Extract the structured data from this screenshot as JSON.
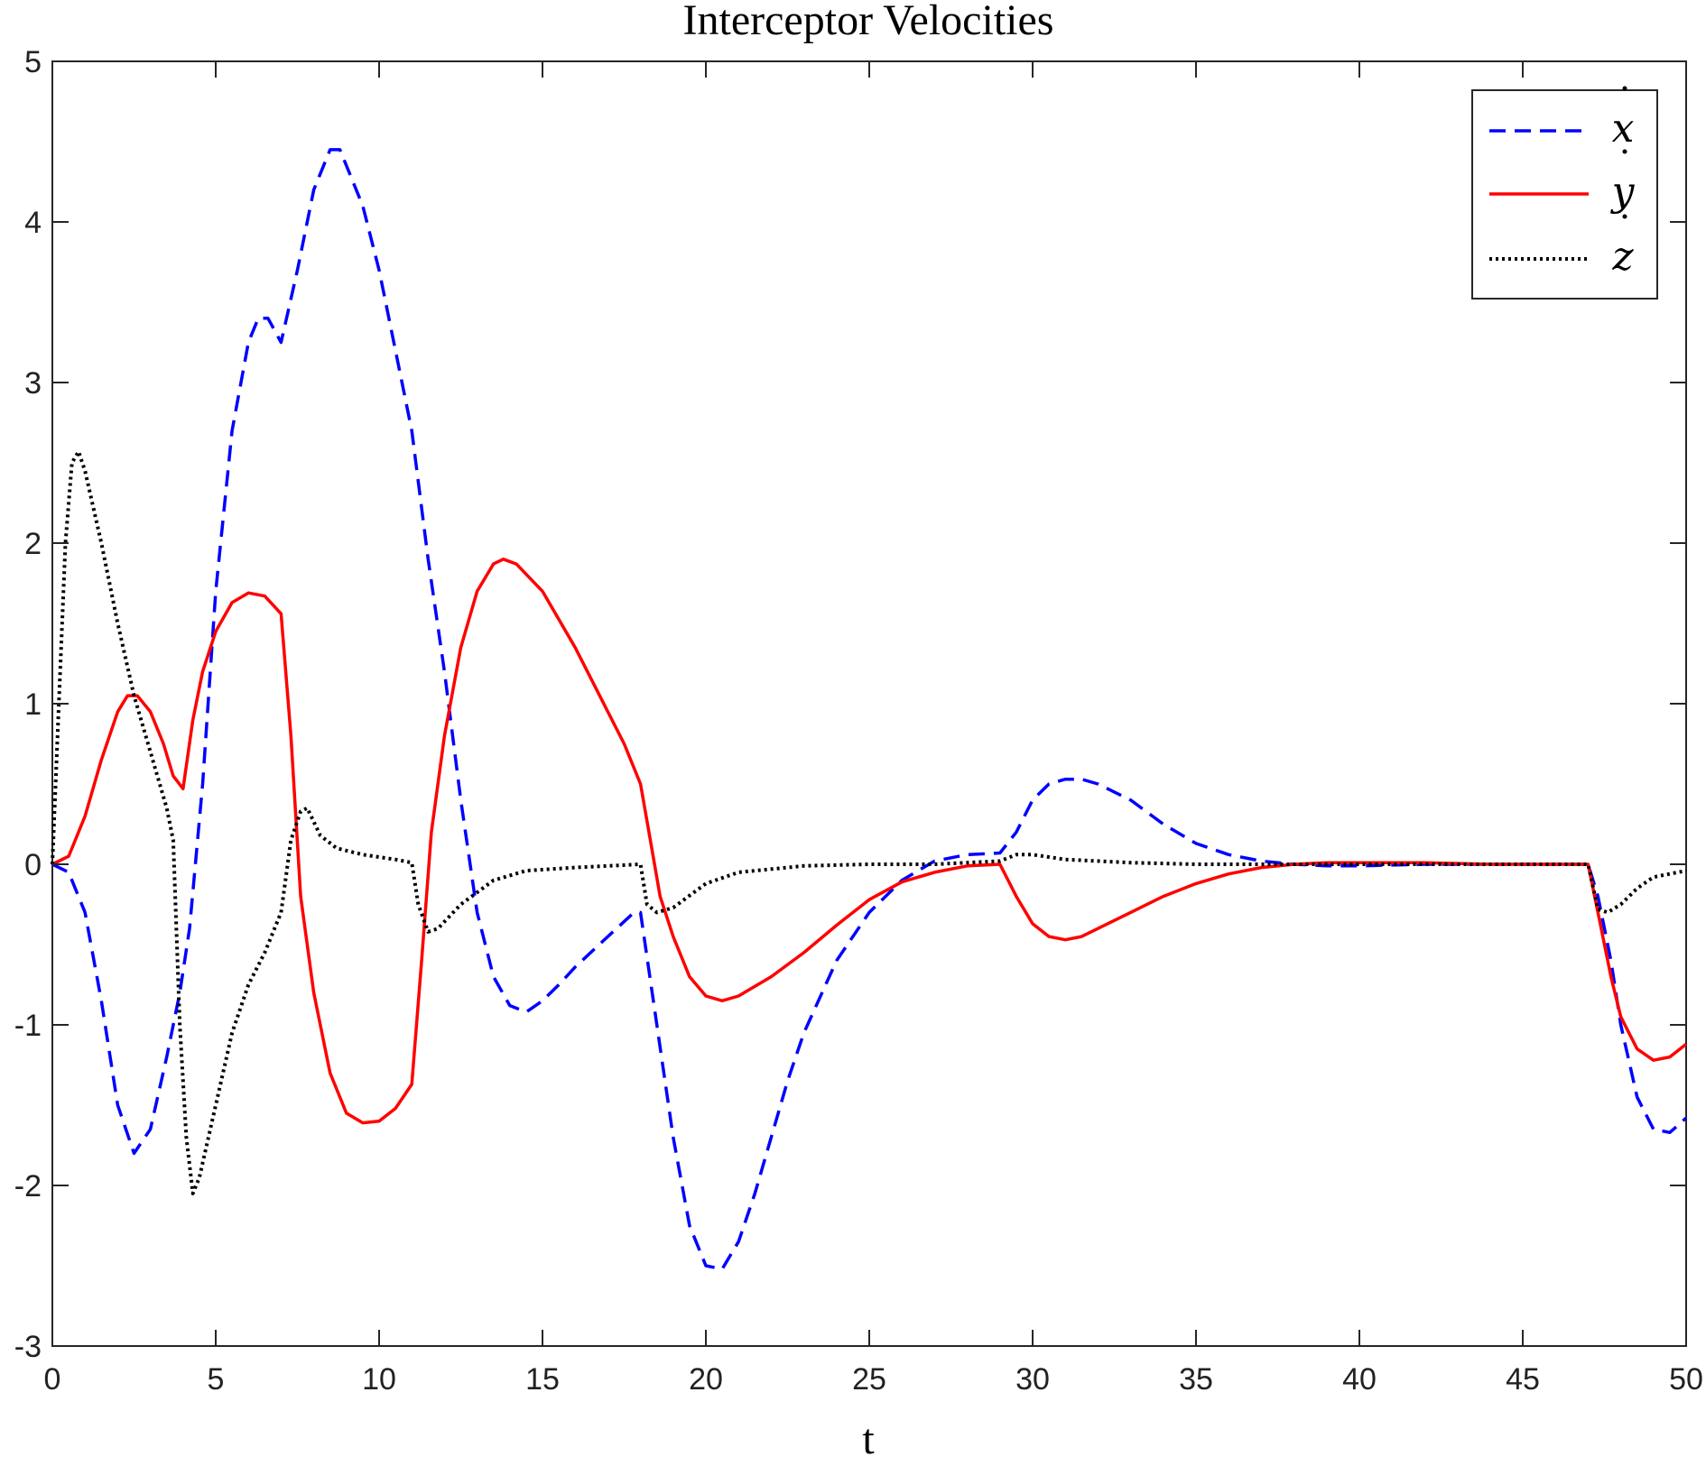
{
  "chart_data": {
    "type": "line",
    "title": "Interceptor Velocities",
    "xlabel": "t",
    "ylabel": "",
    "xlim": [
      0,
      50
    ],
    "ylim": [
      -3,
      5
    ],
    "xticks": [
      0,
      5,
      10,
      15,
      20,
      25,
      30,
      35,
      40,
      45,
      50
    ],
    "yticks": [
      -3,
      -2,
      -1,
      0,
      1,
      2,
      3,
      4,
      5
    ],
    "grid": false,
    "legend_position": "top-right",
    "series": [
      {
        "name": "x",
        "color": "#0000ff",
        "style": "dashed",
        "points": [
          [
            0,
            0
          ],
          [
            0.5,
            -0.05
          ],
          [
            1,
            -0.3
          ],
          [
            1.5,
            -0.85
          ],
          [
            2,
            -1.5
          ],
          [
            2.5,
            -1.8
          ],
          [
            3,
            -1.65
          ],
          [
            3.5,
            -1.2
          ],
          [
            3.9,
            -0.8
          ],
          [
            4.2,
            -0.4
          ],
          [
            4.6,
            0.5
          ],
          [
            5,
            1.7
          ],
          [
            5.5,
            2.7
          ],
          [
            6,
            3.25
          ],
          [
            6.3,
            3.4
          ],
          [
            6.6,
            3.4
          ],
          [
            7,
            3.25
          ],
          [
            7.5,
            3.7
          ],
          [
            8,
            4.2
          ],
          [
            8.5,
            4.45
          ],
          [
            8.8,
            4.45
          ],
          [
            9.5,
            4.1
          ],
          [
            10,
            3.7
          ],
          [
            10.5,
            3.2
          ],
          [
            11,
            2.7
          ],
          [
            11.5,
            1.9
          ],
          [
            12,
            1.2
          ],
          [
            12.5,
            0.4
          ],
          [
            13,
            -0.3
          ],
          [
            13.5,
            -0.7
          ],
          [
            14,
            -0.88
          ],
          [
            14.5,
            -0.92
          ],
          [
            15,
            -0.85
          ],
          [
            15.5,
            -0.75
          ],
          [
            16,
            -0.64
          ],
          [
            17,
            -0.45
          ],
          [
            17.8,
            -0.3
          ],
          [
            18,
            -0.3
          ],
          [
            18.5,
            -1.0
          ],
          [
            19,
            -1.7
          ],
          [
            19.5,
            -2.25
          ],
          [
            20,
            -2.5
          ],
          [
            20.5,
            -2.52
          ],
          [
            21,
            -2.35
          ],
          [
            21.5,
            -2.05
          ],
          [
            22,
            -1.7
          ],
          [
            22.5,
            -1.35
          ],
          [
            23,
            -1.05
          ],
          [
            24,
            -0.6
          ],
          [
            25,
            -0.3
          ],
          [
            26,
            -0.1
          ],
          [
            27,
            0.02
          ],
          [
            28,
            0.06
          ],
          [
            29,
            0.07
          ],
          [
            29.5,
            0.2
          ],
          [
            30,
            0.4
          ],
          [
            30.5,
            0.5
          ],
          [
            31,
            0.53
          ],
          [
            31.5,
            0.53
          ],
          [
            32,
            0.5
          ],
          [
            33,
            0.4
          ],
          [
            34,
            0.25
          ],
          [
            35,
            0.13
          ],
          [
            36,
            0.06
          ],
          [
            37,
            0.02
          ],
          [
            38,
            0
          ],
          [
            39,
            -0.01
          ],
          [
            40,
            -0.01
          ],
          [
            42,
            0
          ],
          [
            44,
            0
          ],
          [
            46,
            0
          ],
          [
            47,
            0
          ],
          [
            47.3,
            -0.2
          ],
          [
            47.7,
            -0.6
          ],
          [
            48,
            -1.0
          ],
          [
            48.5,
            -1.45
          ],
          [
            49,
            -1.65
          ],
          [
            49.5,
            -1.67
          ],
          [
            50,
            -1.58
          ]
        ]
      },
      {
        "name": "y",
        "color": "#ff0000",
        "style": "solid",
        "points": [
          [
            0,
            0
          ],
          [
            0.5,
            0.05
          ],
          [
            1,
            0.3
          ],
          [
            1.5,
            0.65
          ],
          [
            2,
            0.95
          ],
          [
            2.3,
            1.05
          ],
          [
            2.6,
            1.05
          ],
          [
            3,
            0.95
          ],
          [
            3.4,
            0.75
          ],
          [
            3.7,
            0.55
          ],
          [
            4,
            0.47
          ],
          [
            4.3,
            0.9
          ],
          [
            4.6,
            1.2
          ],
          [
            5,
            1.45
          ],
          [
            5.5,
            1.63
          ],
          [
            6,
            1.69
          ],
          [
            6.5,
            1.67
          ],
          [
            7,
            1.56
          ],
          [
            7.3,
            0.8
          ],
          [
            7.6,
            -0.2
          ],
          [
            8,
            -0.8
          ],
          [
            8.5,
            -1.3
          ],
          [
            9,
            -1.55
          ],
          [
            9.5,
            -1.61
          ],
          [
            10,
            -1.6
          ],
          [
            10.5,
            -1.52
          ],
          [
            11,
            -1.37
          ],
          [
            11.3,
            -0.6
          ],
          [
            11.6,
            0.2
          ],
          [
            12,
            0.8
          ],
          [
            12.5,
            1.35
          ],
          [
            13,
            1.7
          ],
          [
            13.5,
            1.87
          ],
          [
            13.8,
            1.9
          ],
          [
            14.2,
            1.87
          ],
          [
            15,
            1.7
          ],
          [
            16,
            1.35
          ],
          [
            17,
            0.95
          ],
          [
            17.5,
            0.75
          ],
          [
            18,
            0.5
          ],
          [
            18.3,
            0.15
          ],
          [
            18.6,
            -0.2
          ],
          [
            19,
            -0.45
          ],
          [
            19.5,
            -0.7
          ],
          [
            20,
            -0.82
          ],
          [
            20.5,
            -0.85
          ],
          [
            21,
            -0.82
          ],
          [
            22,
            -0.7
          ],
          [
            23,
            -0.55
          ],
          [
            24,
            -0.38
          ],
          [
            25,
            -0.22
          ],
          [
            26,
            -0.11
          ],
          [
            27,
            -0.05
          ],
          [
            28,
            -0.01
          ],
          [
            29,
            0
          ],
          [
            29.5,
            -0.2
          ],
          [
            30,
            -0.37
          ],
          [
            30.5,
            -0.45
          ],
          [
            31,
            -0.47
          ],
          [
            31.5,
            -0.45
          ],
          [
            32,
            -0.4
          ],
          [
            33,
            -0.3
          ],
          [
            34,
            -0.2
          ],
          [
            35,
            -0.12
          ],
          [
            36,
            -0.06
          ],
          [
            37,
            -0.02
          ],
          [
            38,
            0
          ],
          [
            39,
            0.01
          ],
          [
            40,
            0.01
          ],
          [
            42,
            0.01
          ],
          [
            44,
            0
          ],
          [
            46,
            0
          ],
          [
            47,
            0
          ],
          [
            47.3,
            -0.3
          ],
          [
            47.7,
            -0.7
          ],
          [
            48,
            -0.95
          ],
          [
            48.5,
            -1.15
          ],
          [
            49,
            -1.22
          ],
          [
            49.5,
            -1.2
          ],
          [
            50,
            -1.12
          ]
        ]
      },
      {
        "name": "z",
        "color": "#000000",
        "style": "dotted",
        "points": [
          [
            0,
            0
          ],
          [
            0.2,
            1.0
          ],
          [
            0.4,
            2.0
          ],
          [
            0.6,
            2.5
          ],
          [
            0.8,
            2.57
          ],
          [
            1,
            2.45
          ],
          [
            1.5,
            2.0
          ],
          [
            2,
            1.5
          ],
          [
            2.5,
            1.05
          ],
          [
            3,
            0.7
          ],
          [
            3.5,
            0.35
          ],
          [
            3.7,
            0.15
          ],
          [
            3.9,
            -1.0
          ],
          [
            4.1,
            -1.7
          ],
          [
            4.3,
            -2.05
          ],
          [
            4.5,
            -1.95
          ],
          [
            5,
            -1.5
          ],
          [
            5.5,
            -1.05
          ],
          [
            6,
            -0.75
          ],
          [
            6.5,
            -0.55
          ],
          [
            7,
            -0.3
          ],
          [
            7.3,
            0.15
          ],
          [
            7.6,
            0.33
          ],
          [
            7.8,
            0.35
          ],
          [
            8.2,
            0.18
          ],
          [
            8.7,
            0.1
          ],
          [
            9.5,
            0.06
          ],
          [
            10.5,
            0.03
          ],
          [
            11,
            0.01
          ],
          [
            11.2,
            -0.25
          ],
          [
            11.5,
            -0.42
          ],
          [
            11.8,
            -0.4
          ],
          [
            12.5,
            -0.25
          ],
          [
            13.5,
            -0.1
          ],
          [
            14.5,
            -0.04
          ],
          [
            16,
            -0.02
          ],
          [
            17,
            -0.01
          ],
          [
            18,
            0
          ],
          [
            18.2,
            -0.25
          ],
          [
            18.5,
            -0.3
          ],
          [
            19,
            -0.27
          ],
          [
            20,
            -0.12
          ],
          [
            21,
            -0.05
          ],
          [
            23,
            -0.01
          ],
          [
            25,
            0
          ],
          [
            27,
            0
          ],
          [
            28,
            0.01
          ],
          [
            29,
            0.02
          ],
          [
            29.5,
            0.06
          ],
          [
            30,
            0.06
          ],
          [
            31,
            0.03
          ],
          [
            33,
            0.01
          ],
          [
            35,
            0
          ],
          [
            40,
            0
          ],
          [
            45,
            0
          ],
          [
            47,
            0
          ],
          [
            47.3,
            -0.28
          ],
          [
            47.6,
            -0.3
          ],
          [
            48,
            -0.25
          ],
          [
            48.5,
            -0.15
          ],
          [
            49,
            -0.08
          ],
          [
            50,
            -0.04
          ]
        ]
      }
    ]
  }
}
